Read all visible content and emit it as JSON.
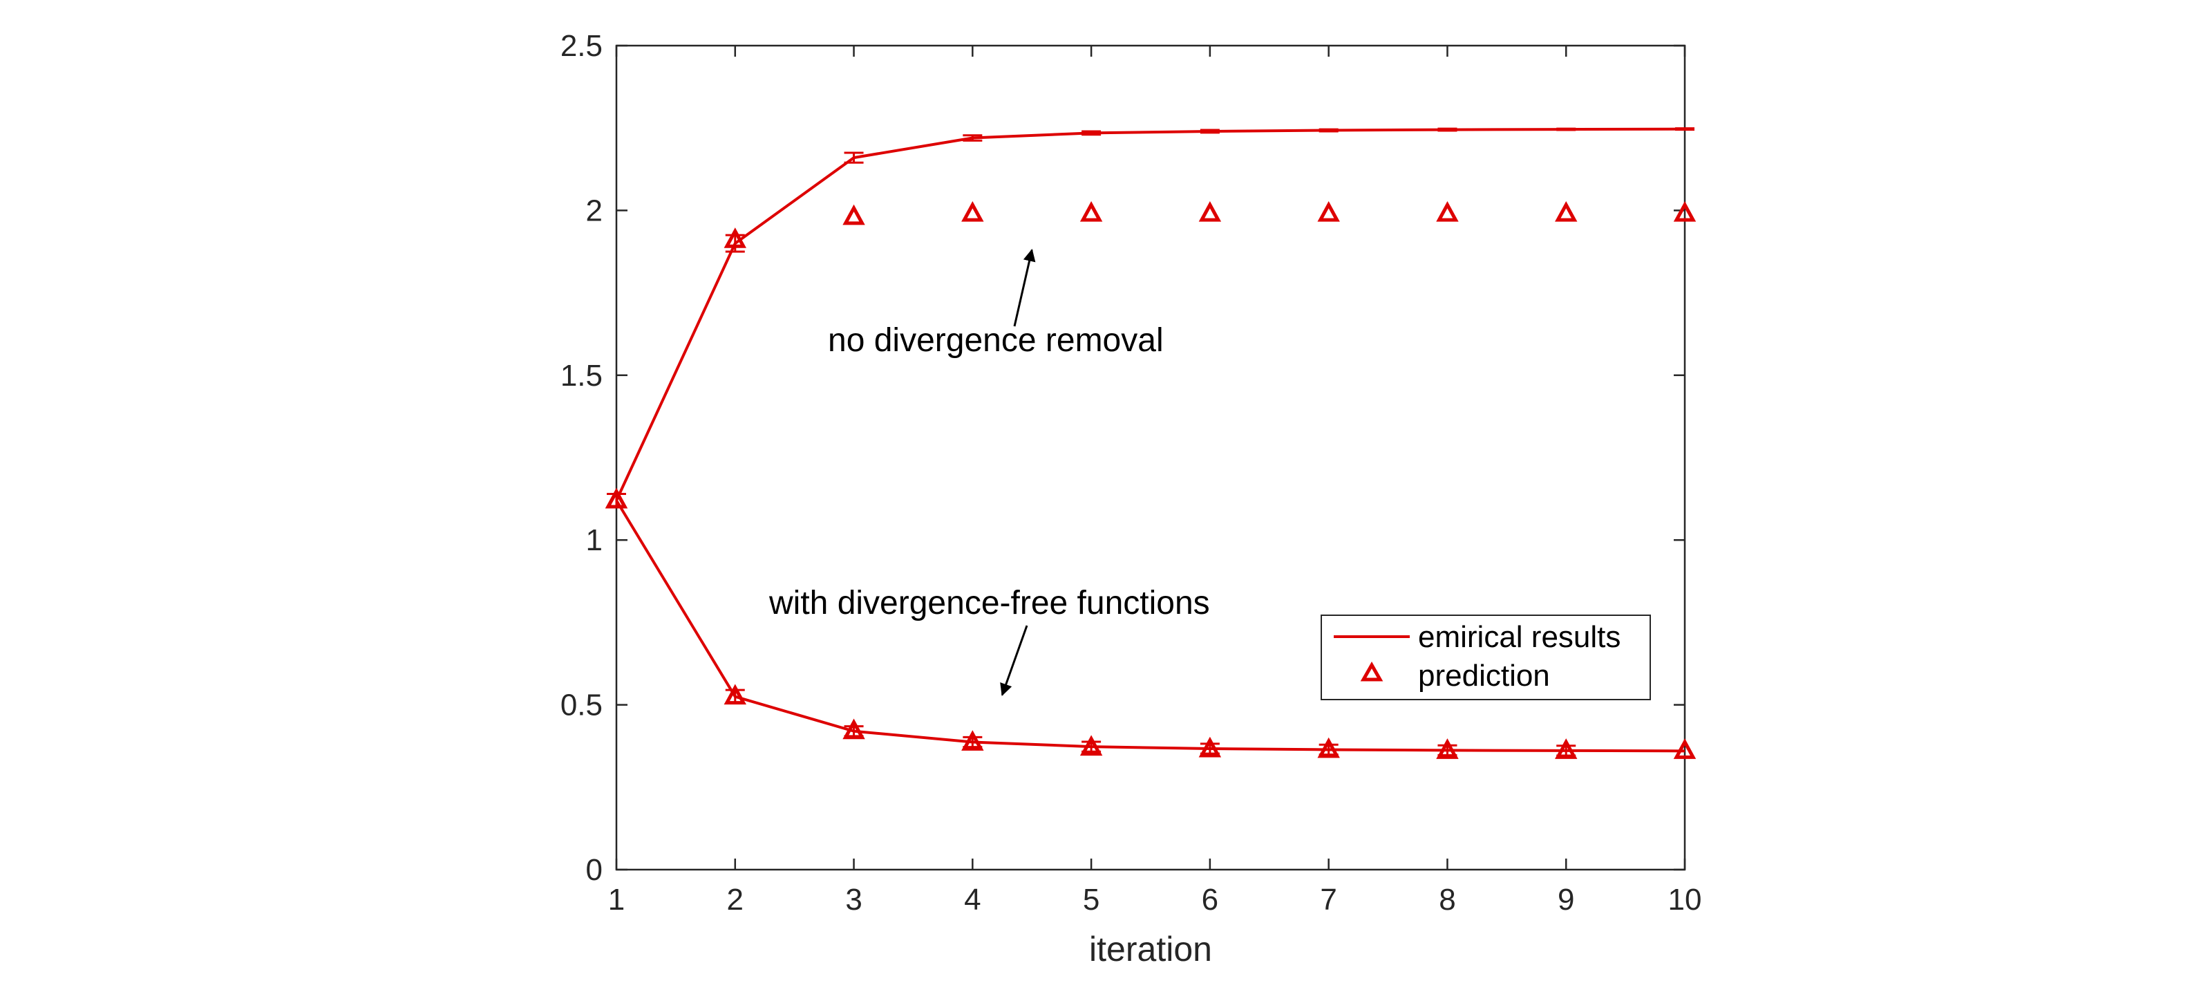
{
  "chart_data": {
    "type": "line",
    "title": "",
    "xlabel": "iteration",
    "ylabel": "",
    "xlim": [
      1,
      10
    ],
    "ylim": [
      0,
      2.5
    ],
    "xticks": [
      "1",
      "2",
      "3",
      "4",
      "5",
      "6",
      "7",
      "8",
      "9",
      "10"
    ],
    "yticks": [
      "0",
      "0.5",
      "1",
      "1.5",
      "2",
      "2.5"
    ],
    "grid": false,
    "legend_position": "lower-right",
    "legend": {
      "line_label": "emirical results",
      "marker_label": "prediction"
    },
    "colors": {
      "series": "#dd0000",
      "axis": "#262626",
      "annotation": "#000000"
    },
    "series": [
      {
        "style": "line-with-errorbars",
        "x": [
          1,
          2,
          3,
          4,
          5,
          6,
          7,
          8,
          9,
          10
        ],
        "values": [
          1.12,
          1.9,
          2.16,
          2.22,
          2.235,
          2.24,
          2.243,
          2.245,
          2.246,
          2.247
        ],
        "errors": [
          0.02,
          0.025,
          0.015,
          0.008,
          0.005,
          0.004,
          0.003,
          0.003,
          0.002,
          0.002
        ]
      },
      {
        "style": "line-with-errorbars",
        "x": [
          1,
          2,
          3,
          4,
          5,
          6,
          7,
          8,
          9,
          10
        ],
        "values": [
          1.12,
          0.525,
          0.42,
          0.387,
          0.373,
          0.367,
          0.364,
          0.362,
          0.361,
          0.36
        ],
        "errors": [
          0.02,
          0.02,
          0.015,
          0.015,
          0.015,
          0.015,
          0.015,
          0.015,
          0.015,
          0.0
        ]
      },
      {
        "style": "markers",
        "x": [
          1,
          2,
          3,
          4,
          5,
          6,
          7,
          8,
          9,
          10
        ],
        "values": [
          1.12,
          1.91,
          1.98,
          1.99,
          1.99,
          1.99,
          1.99,
          1.99,
          1.99,
          1.99
        ]
      },
      {
        "style": "markers",
        "x": [
          1,
          2,
          3,
          4,
          5,
          6,
          7,
          8,
          9,
          10
        ],
        "values": [
          1.12,
          0.525,
          0.42,
          0.385,
          0.37,
          0.365,
          0.363,
          0.36,
          0.36,
          0.36
        ]
      }
    ],
    "annotations": [
      {
        "text": "no divergence removal",
        "arrow_to": [
          4.5,
          1.88
        ]
      },
      {
        "text": "with divergence-free functions",
        "arrow_to": [
          4.25,
          0.53
        ]
      }
    ]
  }
}
